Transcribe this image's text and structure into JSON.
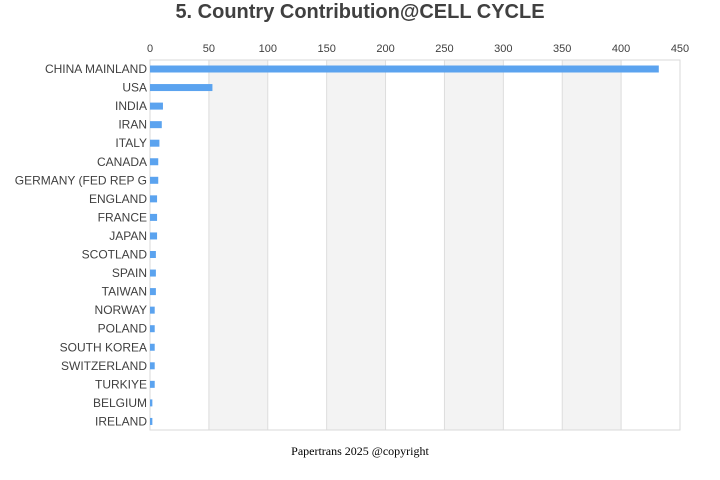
{
  "chart_data": {
    "type": "bar",
    "orientation": "horizontal",
    "title": "5. Country Contribution@CELL CYCLE",
    "xlabel": "",
    "ylabel": "",
    "xlim": [
      0,
      450
    ],
    "x_ticks": [
      0,
      50,
      100,
      150,
      200,
      250,
      300,
      350,
      400,
      450
    ],
    "x_axis_position": "top",
    "categories": [
      "CHINA MAINLAND",
      "USA",
      "INDIA",
      "IRAN",
      "ITALY",
      "CANADA",
      "GERMANY (FED REP G",
      "ENGLAND",
      "FRANCE",
      "JAPAN",
      "SCOTLAND",
      "SPAIN",
      "TAIWAN",
      "NORWAY",
      "POLAND",
      "SOUTH KOREA",
      "SWITZERLAND",
      "TURKIYE",
      "BELGIUM",
      "IRELAND"
    ],
    "values": [
      432,
      53,
      11,
      10,
      8,
      7,
      7,
      6,
      6,
      6,
      5,
      5,
      5,
      4,
      4,
      4,
      4,
      4,
      2,
      2
    ],
    "bar_color": "#5ba3ef",
    "band_color": "#f3f3f3",
    "grid": true,
    "legend": "none"
  },
  "footer": "Papertrans 2025 @copyright"
}
